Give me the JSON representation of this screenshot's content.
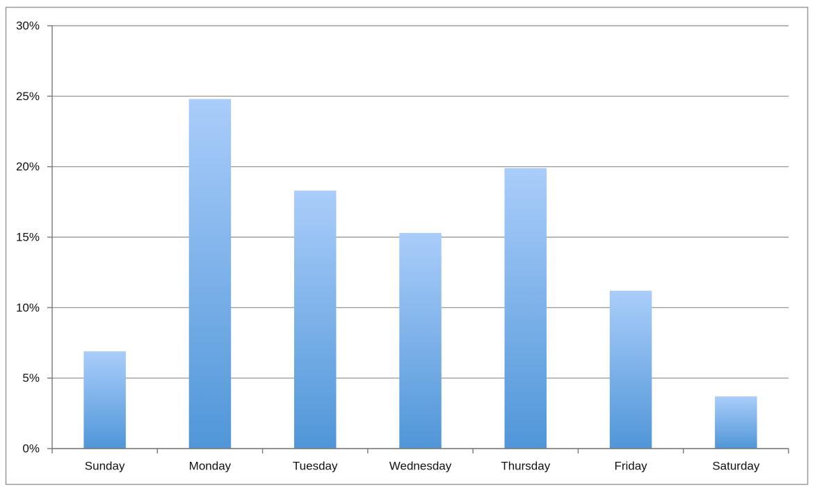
{
  "chart_data": {
    "type": "bar",
    "categories": [
      "Sunday",
      "Monday",
      "Tuesday",
      "Wednesday",
      "Thursday",
      "Friday",
      "Saturday"
    ],
    "values": [
      6.9,
      24.8,
      18.3,
      15.3,
      19.9,
      11.2,
      3.7
    ],
    "color": "#5096d8",
    "ylim": [
      0,
      30
    ],
    "yticks": [
      {
        "value": 0,
        "label": "0%"
      },
      {
        "value": 5,
        "label": "5%"
      },
      {
        "value": 10,
        "label": "10%"
      },
      {
        "value": 15,
        "label": "15%"
      },
      {
        "value": 20,
        "label": "20%"
      },
      {
        "value": 25,
        "label": "25%"
      },
      {
        "value": 30,
        "label": "30%"
      }
    ],
    "grid": true
  }
}
